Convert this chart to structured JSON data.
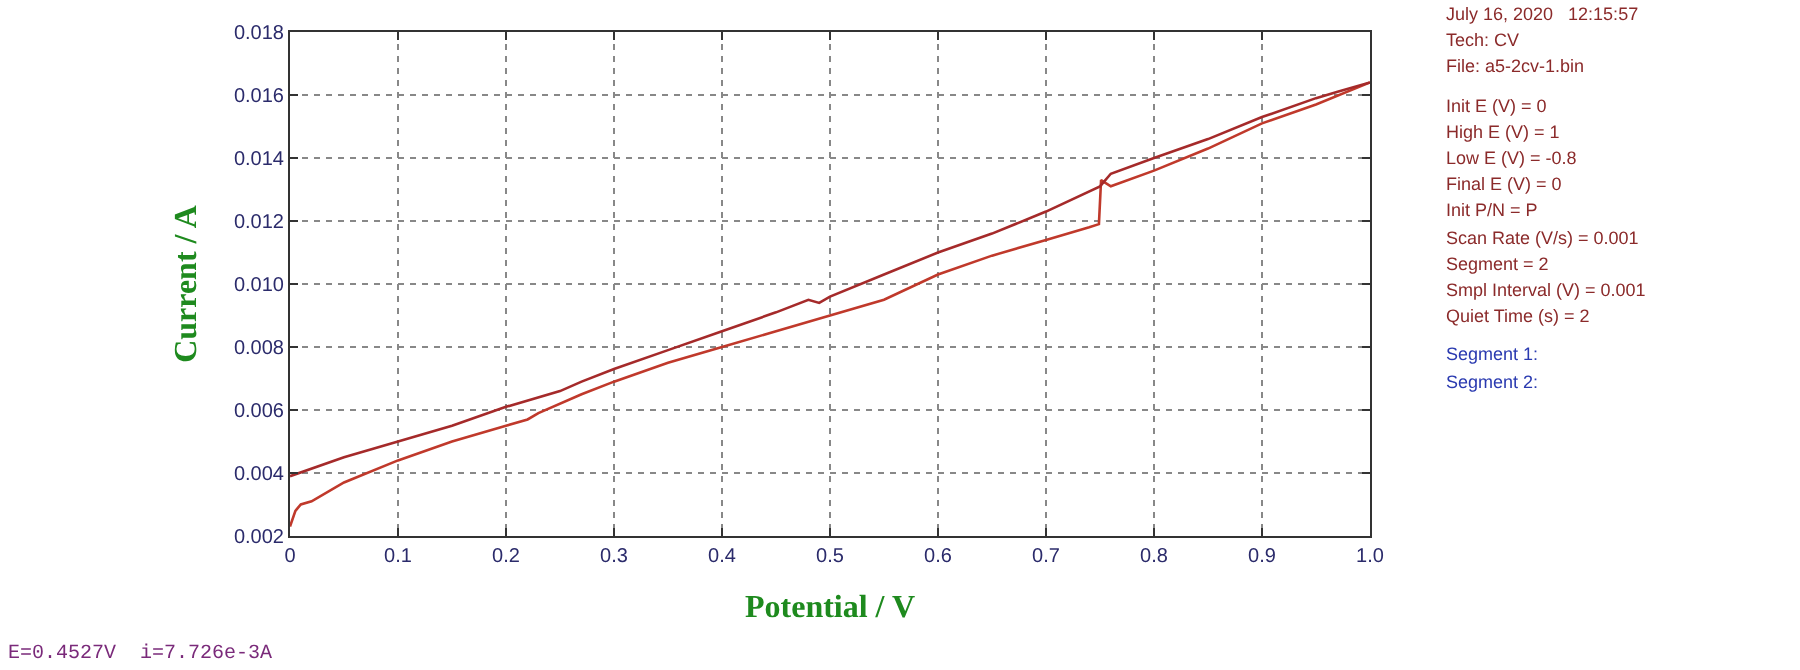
{
  "chart_data": {
    "type": "line",
    "xlabel": "Potential / V",
    "ylabel": "Current / A",
    "xlim": [
      0,
      1
    ],
    "ylim": [
      0.002,
      0.018
    ],
    "xticks": [
      0,
      0.1,
      0.2,
      0.3,
      0.4,
      0.5,
      0.6,
      0.7,
      0.8,
      0.9,
      {
        "value": 1,
        "label": "1.0"
      }
    ],
    "yticks": [
      0.002,
      0.004,
      0.006,
      0.008,
      {
        "value": 0.01,
        "label": "0.010"
      },
      0.012,
      0.014,
      0.016,
      0.018
    ],
    "grid": true,
    "marker": "none",
    "line_style": "solid",
    "series": [
      {
        "color": "#c0392b",
        "x": [
          0,
          0.005,
          0.01,
          0.02,
          0.05,
          0.1,
          0.15,
          0.2,
          0.22,
          0.23,
          0.27,
          0.3,
          0.35,
          0.4,
          0.45,
          0.5,
          0.55,
          0.6,
          0.65,
          0.7,
          0.74,
          0.749,
          0.751,
          0.76,
          0.8,
          0.85,
          0.9,
          0.95,
          1.0
        ],
        "values": [
          0.0023,
          0.0028,
          0.003,
          0.0031,
          0.0037,
          0.0044,
          0.005,
          0.0055,
          0.0057,
          0.0059,
          0.0065,
          0.0069,
          0.0075,
          0.008,
          0.0085,
          0.009,
          0.0095,
          0.0103,
          0.0109,
          0.0114,
          0.0118,
          0.0119,
          0.0133,
          0.0131,
          0.0136,
          0.0143,
          0.0151,
          0.0157,
          0.0164
        ]
      },
      {
        "color": "#a52a2a",
        "x": [
          1.0,
          0.97,
          0.95,
          0.9,
          0.85,
          0.8,
          0.76,
          0.75,
          0.7,
          0.65,
          0.6,
          0.55,
          0.5,
          0.49,
          0.48,
          0.45,
          0.4,
          0.35,
          0.3,
          0.27,
          0.25,
          0.2,
          0.15,
          0.1,
          0.05,
          0
        ],
        "values": [
          0.0164,
          0.0161,
          0.0159,
          0.0153,
          0.0146,
          0.014,
          0.0135,
          0.0131,
          0.0123,
          0.0116,
          0.011,
          0.0103,
          0.0096,
          0.0094,
          0.0095,
          0.0091,
          0.0085,
          0.0079,
          0.0073,
          0.0069,
          0.0066,
          0.0061,
          0.0055,
          0.005,
          0.0045,
          0.0039
        ]
      }
    ],
    "annotations": [
      "July 16, 2020   12:15:57",
      "Tech: CV",
      "File: a5-2cv-1.bin",
      "Init E (V) = 0",
      "High E (V) = 1",
      "Low E (V) = -0.8",
      "Final E (V) = 0",
      "Init P/N = P",
      "Scan Rate (V/s) = 0.001",
      "Segment = 2",
      "Smpl Interval (V) = 0.001",
      "Quiet Time (s) = 2",
      "Segment 1:",
      "Segment 2:",
      "E=0.4527V  i=7.726e-3A"
    ]
  }
}
